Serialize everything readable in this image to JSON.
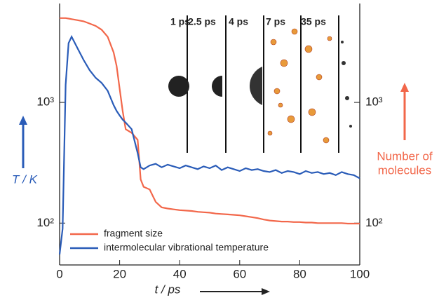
{
  "chart_data": {
    "type": "line",
    "xlabel": "t / ps",
    "ylabel": "T / K",
    "y2label": [
      "Number of",
      "molecules"
    ],
    "annotations": [
      "1 ps",
      "2.5 ps",
      "4 ps",
      "7 ps",
      "35 ps"
    ],
    "log_scale_y": true,
    "legend": "lower left",
    "x": [
      0,
      1,
      2,
      3,
      4,
      6,
      8,
      10,
      12,
      14,
      16,
      18,
      19,
      20,
      21,
      22,
      24,
      26,
      27,
      28,
      30,
      32,
      34,
      36,
      38,
      40,
      42,
      44,
      46,
      48,
      50,
      52,
      54,
      56,
      58,
      60,
      62,
      64,
      66,
      68,
      70,
      72,
      74,
      76,
      78,
      80,
      82,
      84,
      86,
      88,
      90,
      92,
      94,
      96,
      98,
      100
    ],
    "series": [
      {
        "name": "fragment size",
        "color": "#f2674a",
        "axis": "y2",
        "values": [
          5000,
          5000,
          5000,
          4950,
          4900,
          4800,
          4700,
          4500,
          4300,
          4000,
          3500,
          2600,
          2000,
          1300,
          850,
          600,
          560,
          490,
          230,
          200,
          190,
          150,
          135,
          132,
          130,
          128,
          127,
          126,
          124,
          123,
          122,
          120,
          119,
          118,
          117,
          116,
          114,
          112,
          110,
          107,
          105,
          104,
          103,
          103,
          102,
          102,
          101,
          101,
          100,
          100,
          100,
          100,
          100,
          99,
          99,
          99
        ]
      },
      {
        "name": "intermolecular vibrational temperature",
        "color": "#2a5cb8",
        "values": [
          55,
          90,
          1400,
          3100,
          3500,
          2800,
          2250,
          1850,
          1600,
          1450,
          1250,
          950,
          850,
          780,
          720,
          680,
          600,
          380,
          290,
          280,
          300,
          310,
          290,
          305,
          295,
          285,
          300,
          290,
          280,
          295,
          285,
          300,
          275,
          290,
          280,
          270,
          285,
          275,
          280,
          270,
          265,
          275,
          260,
          270,
          265,
          255,
          270,
          260,
          265,
          255,
          260,
          250,
          265,
          255,
          250,
          235
        ]
      }
    ],
    "xlim": [
      0,
      100
    ],
    "xticks": [
      0,
      20,
      40,
      60,
      80,
      100
    ],
    "ylim": [
      45,
      6600
    ],
    "yticks": [
      {
        "value": 100,
        "label": "10²"
      },
      {
        "value": 1000,
        "label": "10³"
      }
    ],
    "y2lim": [
      45,
      6600
    ],
    "y2ticks": [
      {
        "value": 100,
        "label": "10²"
      },
      {
        "value": 1000,
        "label": "10³"
      }
    ]
  }
}
